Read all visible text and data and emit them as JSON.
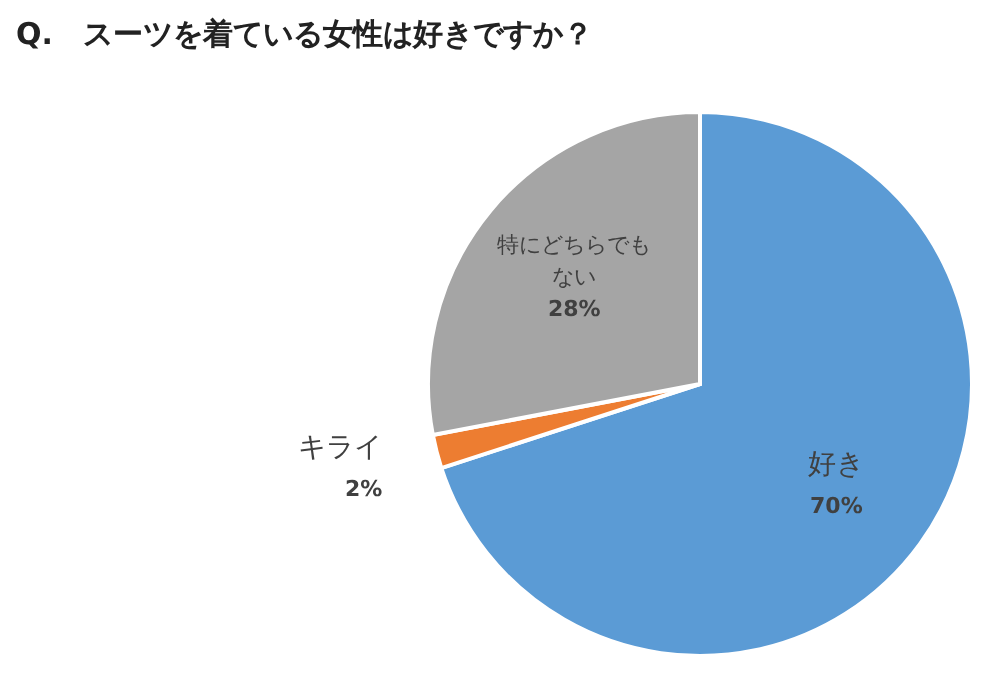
{
  "chart_data": {
    "type": "pie",
    "title": "Q.　スーツを着ている女性は好きですか？",
    "categories": [
      "好き",
      "キライ",
      "特にどちらでもない"
    ],
    "values": [
      70,
      2,
      28
    ],
    "value_labels": [
      "70%",
      "2%",
      "28%"
    ],
    "colors": [
      "#5b9bd5",
      "#ed7d31",
      "#a5a5a5"
    ]
  }
}
